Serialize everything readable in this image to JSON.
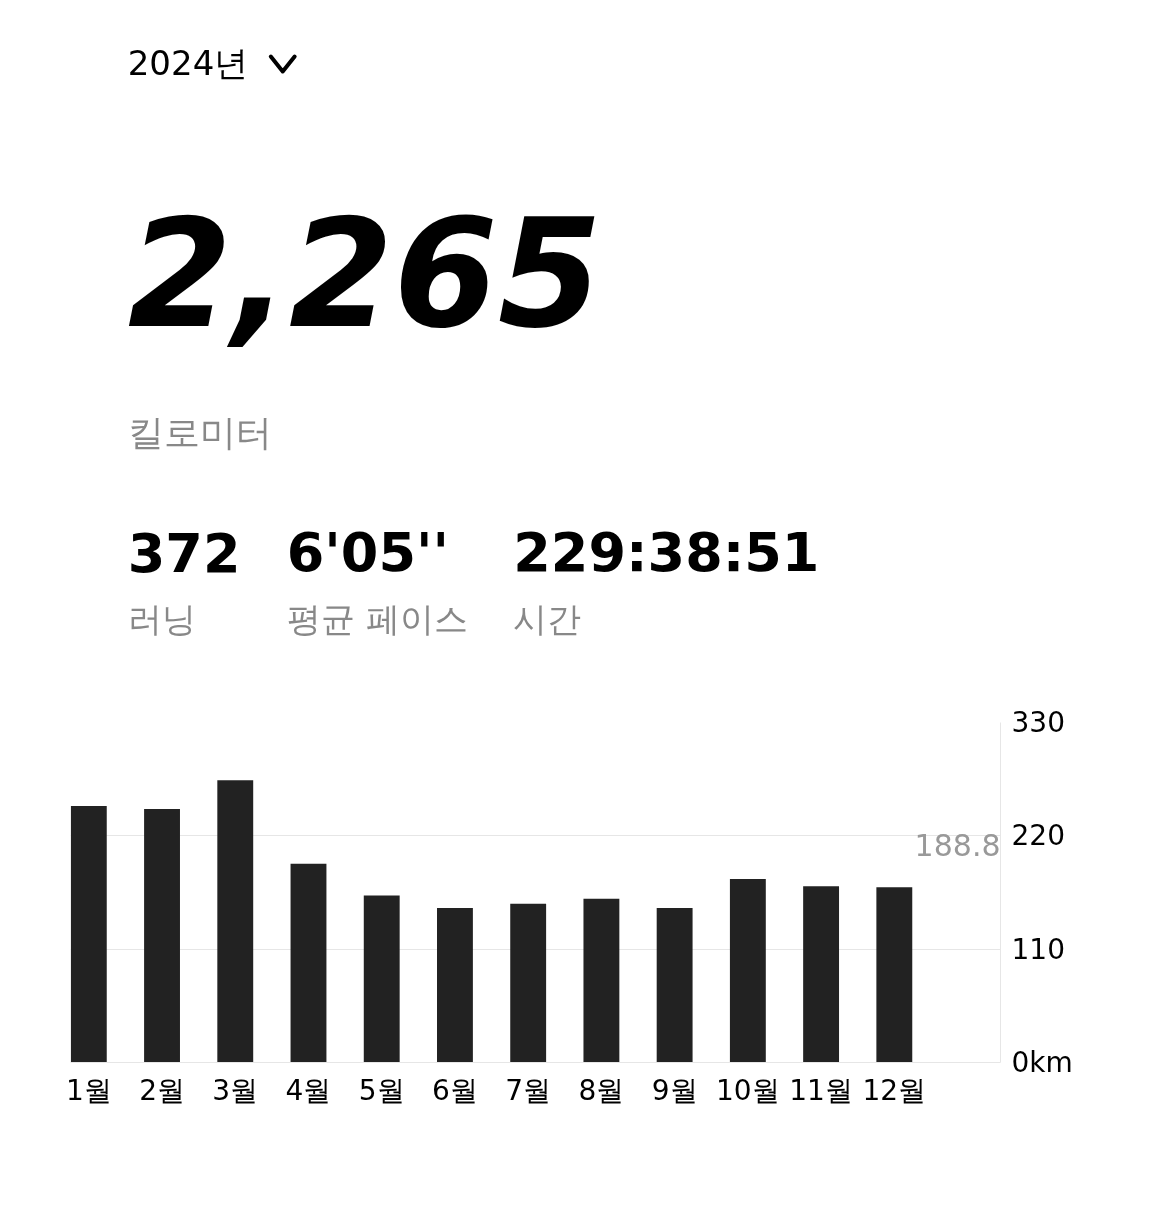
{
  "chart_data": {
    "type": "bar",
    "title": "2024년",
    "subtitle": "2,265",
    "annotations": [
      "킬로미터",
      "372",
      "러닝",
      "6'05''",
      "평균 페이스",
      "229:38:51",
      "시간",
      "188.8"
    ],
    "categories": [
      "1월",
      "2월",
      "3월",
      "4월",
      "5월",
      "6월",
      "7월",
      "8월",
      "9월",
      "10월",
      "11월",
      "12월"
    ],
    "values": [
      249,
      246,
      274,
      193,
      162,
      150,
      154,
      159,
      150,
      178,
      171,
      170
    ],
    "color": "#222222",
    "ylim": [
      0,
      330
    ],
    "yticks": [
      {
        "value": 0,
        "label": "0km"
      },
      110,
      220,
      330
    ],
    "grid": "y"
  }
}
